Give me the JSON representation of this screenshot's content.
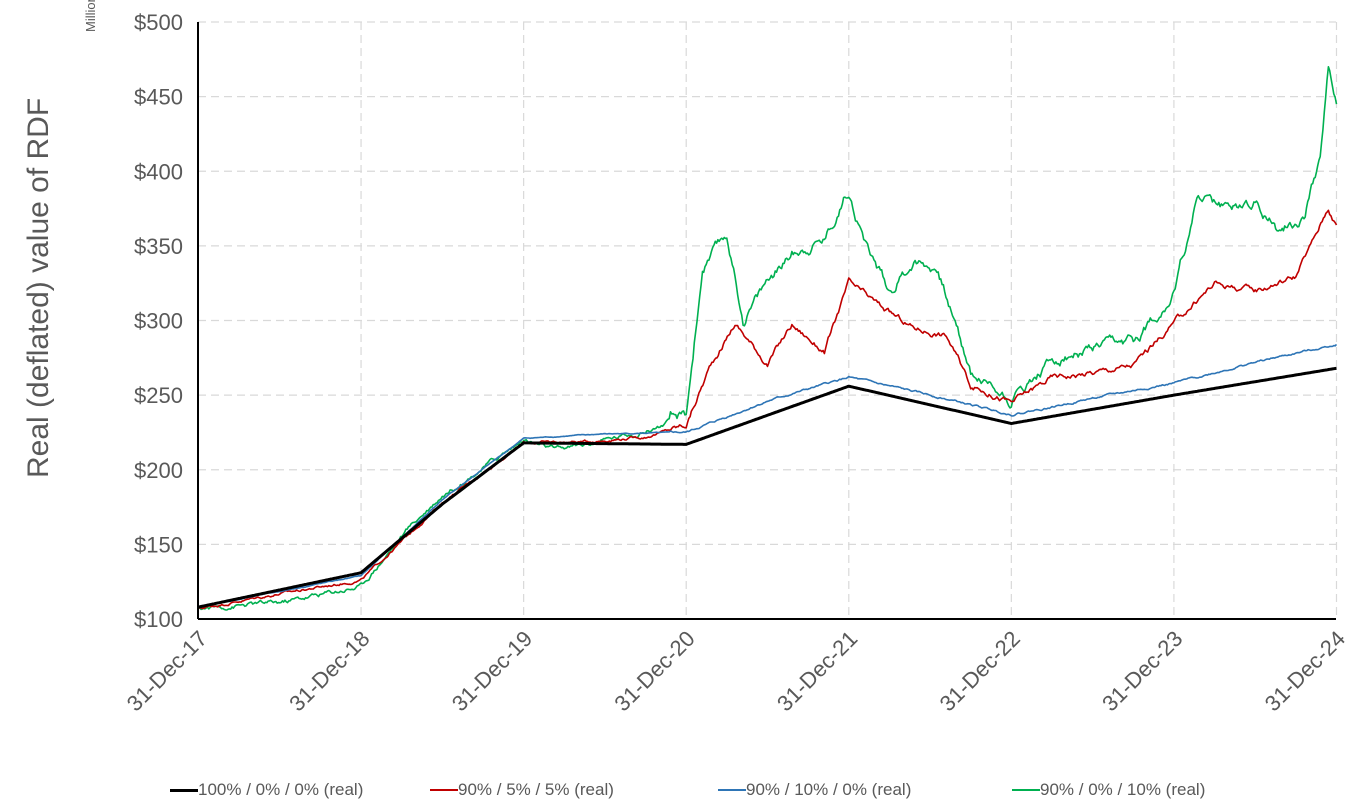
{
  "chart_data": {
    "type": "line",
    "ylabel": "Real (deflated) value of RDF",
    "yunits": "Millions",
    "ylim": [
      100,
      500
    ],
    "yticks": [
      "$100",
      "$150",
      "$200",
      "$250",
      "$300",
      "$350",
      "$400",
      "$450",
      "$500"
    ],
    "ytick_values": [
      100,
      150,
      200,
      250,
      300,
      350,
      400,
      450,
      500
    ],
    "xlim": [
      2017.997,
      2024.997
    ],
    "xtick_labels": [
      "31-Dec-17",
      "31-Dec-18",
      "31-Dec-19",
      "31-Dec-20",
      "31-Dec-21",
      "31-Dec-22",
      "31-Dec-23",
      "31-Dec-24"
    ],
    "grid": "dashed",
    "legend_position": "bottom",
    "series": [
      {
        "name": "100% / 0% / 0% (real)",
        "color": "#000000",
        "x": [
          2018.0,
          2019.0,
          2019.5,
          2020.0,
          2021.0,
          2022.0,
          2023.0,
          2024.0,
          2025.0
        ],
        "y": [
          108,
          131,
          177,
          218,
          217,
          256,
          231,
          250,
          268
        ]
      },
      {
        "name": "90% / 5% / 5% (real)",
        "color": "#C00000",
        "x": [
          2018.0,
          2018.5,
          2019.0,
          2019.5,
          2020.0,
          2020.4,
          2020.75,
          2021.0,
          2021.15,
          2021.3,
          2021.5,
          2021.65,
          2021.85,
          2022.0,
          2022.25,
          2022.4,
          2022.6,
          2022.75,
          2023.0,
          2023.25,
          2023.5,
          2023.75,
          2024.0,
          2024.25,
          2024.5,
          2024.75,
          2024.85,
          2024.95,
          2025.0
        ],
        "y": [
          107,
          117,
          126,
          178,
          218,
          219,
          222,
          230,
          270,
          298,
          271,
          297,
          279,
          325,
          305,
          295,
          290,
          257,
          245,
          262,
          265,
          270,
          298,
          325,
          320,
          330,
          352,
          376,
          364
        ]
      },
      {
        "name": "90% / 10% / 0% (real)",
        "color": "#2E75B6",
        "x": [
          2018.0,
          2019.0,
          2019.5,
          2020.0,
          2020.5,
          2021.0,
          2021.5,
          2022.0,
          2022.5,
          2023.0,
          2023.25,
          2023.5,
          2024.0,
          2024.5,
          2025.0
        ],
        "y": [
          108,
          129,
          180,
          221,
          224,
          225,
          246,
          262,
          250,
          237,
          242,
          248,
          258,
          272,
          284
        ]
      },
      {
        "name": "90% / 0% / 10% (real)",
        "color": "#00B050",
        "x": [
          2018.0,
          2018.5,
          2019.0,
          2019.3,
          2019.5,
          2020.0,
          2020.2,
          2020.5,
          2020.75,
          2021.0,
          2021.1,
          2021.25,
          2021.35,
          2021.5,
          2021.65,
          2021.85,
          2022.0,
          2022.1,
          2022.25,
          2022.4,
          2022.55,
          2022.75,
          2023.0,
          2023.25,
          2023.5,
          2023.75,
          2024.0,
          2024.15,
          2024.3,
          2024.5,
          2024.65,
          2024.8,
          2024.9,
          2024.95,
          2025.0
        ],
        "y": [
          107,
          111,
          122,
          162,
          183,
          220,
          213,
          220,
          226,
          236,
          334,
          357,
          300,
          327,
          345,
          355,
          388,
          352,
          320,
          340,
          335,
          265,
          248,
          273,
          280,
          285,
          318,
          385,
          375,
          380,
          360,
          370,
          410,
          470,
          445
        ]
      }
    ]
  }
}
